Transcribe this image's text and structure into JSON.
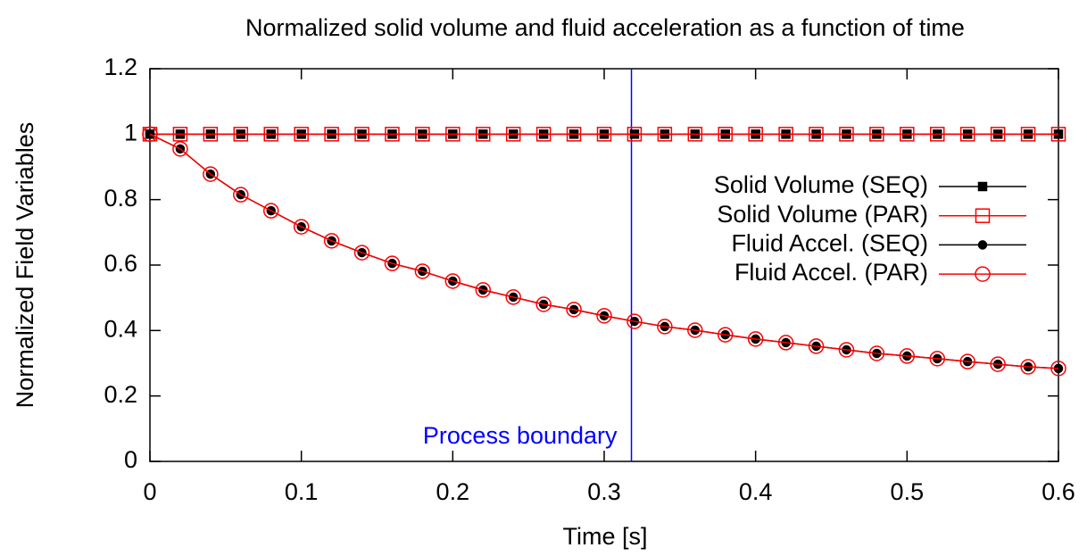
{
  "chart_data": {
    "type": "line",
    "title": "Normalized solid volume and fluid acceleration as a function of time",
    "x_label": "Time [s]",
    "y_label": "Normalized Field Variables",
    "x": [
      0,
      0.02,
      0.04,
      0.06,
      0.08,
      0.1,
      0.12,
      0.14,
      0.16,
      0.18,
      0.2,
      0.22,
      0.24,
      0.26,
      0.28,
      0.3,
      0.32,
      0.34,
      0.36,
      0.38,
      0.4,
      0.42,
      0.44,
      0.46,
      0.48,
      0.5,
      0.52,
      0.54,
      0.56,
      0.58,
      0.6
    ],
    "series": [
      {
        "name": "Solid Volume (SEQ)",
        "color": "#000000",
        "marker": "square-filled",
        "values": [
          1,
          1,
          1,
          1,
          1,
          1,
          1,
          1,
          1,
          1,
          1,
          1,
          1,
          1,
          1,
          1,
          1,
          1,
          1,
          1,
          1,
          1,
          1,
          1,
          1,
          1,
          1,
          1,
          1,
          1,
          1
        ]
      },
      {
        "name": "Solid Volume (PAR)",
        "color": "#ff0000",
        "marker": "square-open",
        "values": [
          1,
          1,
          1,
          1,
          1,
          1,
          1,
          1,
          1,
          1,
          1,
          1,
          1,
          1,
          1,
          1,
          1,
          1,
          1,
          1,
          1,
          1,
          1,
          1,
          1,
          1,
          1,
          1,
          1,
          1,
          1
        ]
      },
      {
        "name": "Fluid Accel. (SEQ)",
        "color": "#000000",
        "marker": "circle-filled",
        "values": [
          1.0,
          0.955,
          0.878,
          0.815,
          0.766,
          0.717,
          0.674,
          0.638,
          0.605,
          0.581,
          0.551,
          0.524,
          0.502,
          0.48,
          0.464,
          0.445,
          0.428,
          0.412,
          0.401,
          0.387,
          0.374,
          0.363,
          0.352,
          0.341,
          0.33,
          0.322,
          0.314,
          0.305,
          0.297,
          0.289,
          0.284
        ]
      },
      {
        "name": "Fluid Accel. (PAR)",
        "color": "#ff0000",
        "marker": "circle-open",
        "values": [
          1.0,
          0.955,
          0.878,
          0.815,
          0.766,
          0.717,
          0.674,
          0.638,
          0.605,
          0.581,
          0.551,
          0.524,
          0.502,
          0.48,
          0.464,
          0.445,
          0.428,
          0.412,
          0.401,
          0.387,
          0.374,
          0.363,
          0.352,
          0.341,
          0.33,
          0.322,
          0.314,
          0.305,
          0.297,
          0.289,
          0.284
        ]
      }
    ],
    "annotations": [
      {
        "text": "Process boundary",
        "x": 0.318,
        "color": "#0000ff"
      }
    ],
    "xlim": [
      0,
      0.6
    ],
    "xticks": [
      0,
      0.1,
      0.2,
      0.3,
      0.4,
      0.5,
      0.6
    ],
    "ylim": [
      0,
      1.2
    ],
    "yticks": [
      0,
      0.2,
      0.4,
      0.6,
      0.8,
      1,
      1.2
    ],
    "legend": "right"
  }
}
